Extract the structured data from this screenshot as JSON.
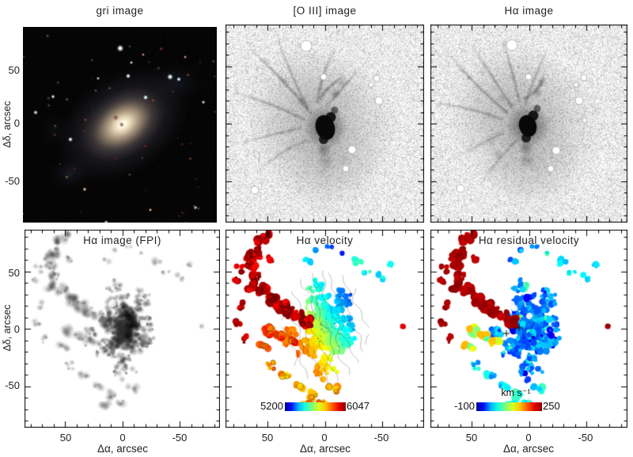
{
  "axes": {
    "xlabel": "Δα, arcsec",
    "ylabel": "Δδ, arcsec",
    "xticks": [
      "50",
      "0",
      "-50"
    ],
    "yticks": [
      "50",
      "0",
      "-50"
    ]
  },
  "panels": {
    "gri": {
      "title": "gri image",
      "type": "color composite image"
    },
    "oiii": {
      "title": "[O III] image",
      "type": "grayscale narrow-band image"
    },
    "halpha": {
      "title": "Hα image",
      "type": "grayscale narrow-band image"
    },
    "fpi": {
      "title": "Hα image (FPI)",
      "type": "grayscale intensity map"
    },
    "velocity": {
      "title": "Hα velocity",
      "type": "velocity field map",
      "colorbar": {
        "min_label": "5200",
        "max_label": "6047",
        "colors": [
          "#00008a",
          "#0010ff",
          "#00b4ff",
          "#17ffe0",
          "#7dff79",
          "#d8ff1e",
          "#ffc400",
          "#ff5a00",
          "#e60000",
          "#8f0000"
        ]
      }
    },
    "residual": {
      "title": "Hα residual velocity",
      "type": "residual velocity map",
      "units": "km s⁻¹",
      "colorbar": {
        "min_label": "-100",
        "max_label": "250",
        "colors": [
          "#00008a",
          "#0010ff",
          "#00b4ff",
          "#17ffe0",
          "#7dff79",
          "#d8ff1e",
          "#ffc400",
          "#ff5a00",
          "#e60000",
          "#8f0000"
        ]
      }
    }
  }
}
